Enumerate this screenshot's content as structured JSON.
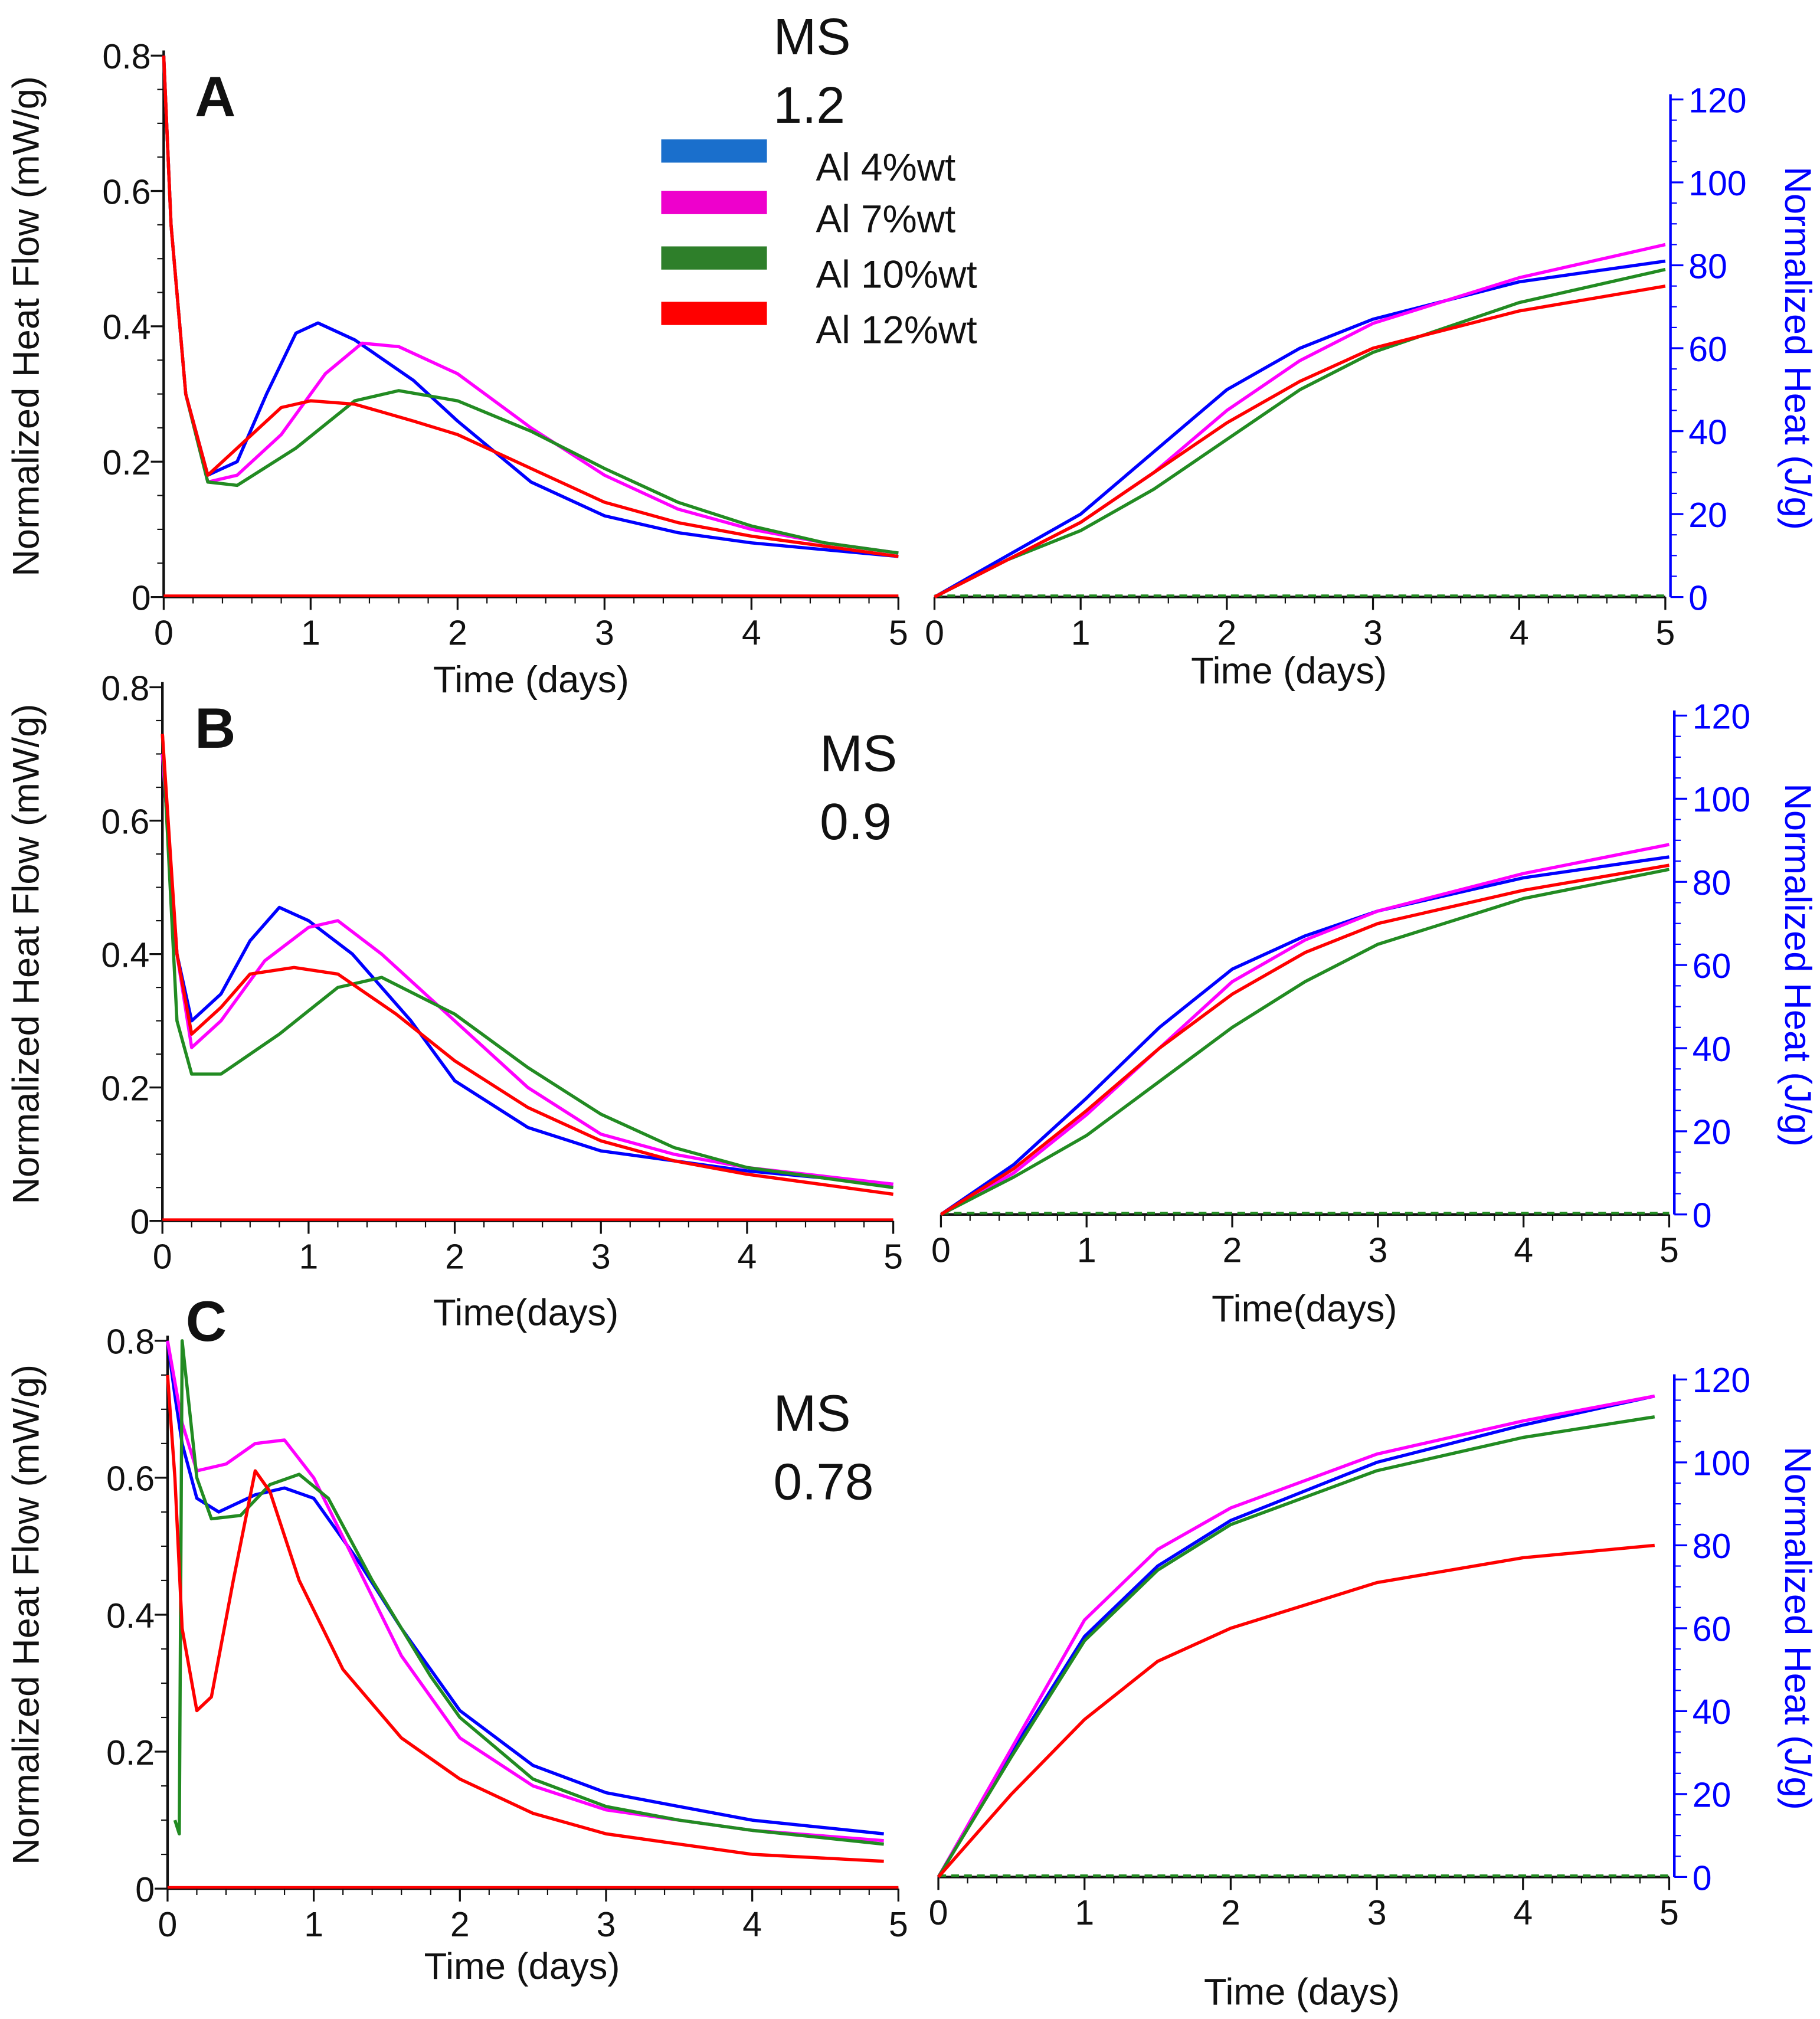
{
  "legend": {
    "entries": [
      {
        "label": "Al 4%wt",
        "color": "#1a6fcc"
      },
      {
        "label": "Al 7%wt",
        "color": "#ee00cc"
      },
      {
        "label": "Al 10%wt",
        "color": "#2e7f2a"
      },
      {
        "label": "Al 12%wt",
        "color": "#ff0000"
      }
    ]
  },
  "series_colors": [
    "#0000ff",
    "#ff00ff",
    "#228b22",
    "#ff0000"
  ],
  "chart_data": [
    {
      "id": "A-flow",
      "panel": "A",
      "ms_label": "MS",
      "ms_value": "1.2",
      "type": "line",
      "xlabel": "Time (days)",
      "ylabel": "Normalized Heat Flow (mW/g)",
      "xlim": [
        0,
        5
      ],
      "ylim": [
        0,
        0.8
      ],
      "xticks": [
        "0",
        "1",
        "2",
        "3",
        "4",
        "5"
      ],
      "yticks": [
        "0",
        "0.2",
        "0.4",
        "0.6",
        "0.8"
      ],
      "series": [
        {
          "name": "Al 4%wt",
          "x": [
            0,
            0.05,
            0.15,
            0.3,
            0.5,
            0.7,
            0.9,
            1.05,
            1.3,
            1.7,
            2,
            2.5,
            3,
            3.5,
            4,
            4.5,
            5
          ],
          "y": [
            0.8,
            0.55,
            0.3,
            0.18,
            0.2,
            0.3,
            0.39,
            0.405,
            0.38,
            0.32,
            0.26,
            0.17,
            0.12,
            0.095,
            0.08,
            0.07,
            0.06
          ]
        },
        {
          "name": "Al 7%wt",
          "x": [
            0,
            0.05,
            0.15,
            0.3,
            0.5,
            0.8,
            1.1,
            1.35,
            1.6,
            2,
            2.5,
            3,
            3.5,
            4,
            4.5,
            5
          ],
          "y": [
            0.8,
            0.55,
            0.3,
            0.17,
            0.18,
            0.24,
            0.33,
            0.375,
            0.37,
            0.33,
            0.25,
            0.18,
            0.13,
            0.1,
            0.08,
            0.065
          ]
        },
        {
          "name": "Al 10%wt",
          "x": [
            0,
            0.05,
            0.15,
            0.3,
            0.5,
            0.9,
            1.3,
            1.6,
            2,
            2.5,
            3,
            3.5,
            4,
            4.5,
            5
          ],
          "y": [
            0.8,
            0.55,
            0.3,
            0.17,
            0.165,
            0.22,
            0.29,
            0.305,
            0.29,
            0.245,
            0.19,
            0.14,
            0.105,
            0.08,
            0.065
          ]
        },
        {
          "name": "Al 12%wt",
          "x": [
            0,
            0.05,
            0.15,
            0.3,
            0.5,
            0.8,
            1,
            1.3,
            1.7,
            2,
            2.5,
            3,
            3.5,
            4,
            4.5,
            5
          ],
          "y": [
            0.8,
            0.55,
            0.3,
            0.18,
            0.22,
            0.28,
            0.29,
            0.285,
            0.26,
            0.24,
            0.19,
            0.14,
            0.11,
            0.09,
            0.075,
            0.06
          ]
        }
      ]
    },
    {
      "id": "A-heat",
      "panel": "A",
      "type": "line",
      "xlabel": "Time (days)",
      "ylabel": "Normalized Heat (J/g)",
      "xlim": [
        0,
        5
      ],
      "ylim": [
        0,
        120
      ],
      "xticks": [
        "0",
        "1",
        "2",
        "3",
        "4",
        "5"
      ],
      "yticks": [
        "0",
        "20",
        "40",
        "60",
        "80",
        "100",
        "120"
      ],
      "series": [
        {
          "name": "Al 4%wt",
          "x": [
            0,
            0.5,
            1,
            1.5,
            2,
            2.5,
            3,
            4,
            5
          ],
          "y": [
            0,
            10,
            20,
            35,
            50,
            60,
            67,
            76,
            81
          ]
        },
        {
          "name": "Al 7%wt",
          "x": [
            0,
            0.5,
            1,
            1.5,
            2,
            2.5,
            3,
            4,
            5
          ],
          "y": [
            0,
            9,
            18,
            30,
            45,
            57,
            66,
            77,
            85
          ]
        },
        {
          "name": "Al 10%wt",
          "x": [
            0,
            0.5,
            1,
            1.5,
            2,
            2.5,
            3,
            4,
            5
          ],
          "y": [
            0,
            9,
            16,
            26,
            38,
            50,
            59,
            71,
            79
          ]
        },
        {
          "name": "Al 12%wt",
          "x": [
            0,
            0.5,
            1,
            1.5,
            2,
            2.5,
            3,
            4,
            5
          ],
          "y": [
            0,
            9,
            18,
            30,
            42,
            52,
            60,
            69,
            75
          ]
        }
      ]
    },
    {
      "id": "B-flow",
      "panel": "B",
      "ms_label": "MS",
      "ms_value": "0.9",
      "type": "line",
      "xlabel": "Time(days)",
      "ylabel": "Normalized Heat Flow (mW/g)",
      "xlim": [
        0,
        5
      ],
      "ylim": [
        0,
        0.8
      ],
      "xticks": [
        "0",
        "1",
        "2",
        "3",
        "4",
        "5"
      ],
      "yticks": [
        "0",
        "0.2",
        "0.4",
        "0.6",
        "0.8"
      ],
      "series": [
        {
          "name": "Al 4%wt",
          "x": [
            0,
            0.1,
            0.2,
            0.4,
            0.6,
            0.8,
            1,
            1.3,
            1.7,
            2,
            2.5,
            3,
            3.5,
            4,
            5
          ],
          "y": [
            0.7,
            0.4,
            0.3,
            0.34,
            0.42,
            0.47,
            0.45,
            0.4,
            0.3,
            0.21,
            0.14,
            0.105,
            0.09,
            0.075,
            0.055
          ]
        },
        {
          "name": "Al 7%wt",
          "x": [
            0,
            0.1,
            0.2,
            0.4,
            0.7,
            1,
            1.2,
            1.5,
            2,
            2.5,
            3,
            3.5,
            4,
            5
          ],
          "y": [
            0.7,
            0.4,
            0.26,
            0.3,
            0.39,
            0.44,
            0.45,
            0.4,
            0.3,
            0.2,
            0.13,
            0.1,
            0.08,
            0.055
          ]
        },
        {
          "name": "Al 10%wt",
          "x": [
            0,
            0.1,
            0.2,
            0.4,
            0.8,
            1.2,
            1.5,
            2,
            2.5,
            3,
            3.5,
            4,
            5
          ],
          "y": [
            0.73,
            0.3,
            0.22,
            0.22,
            0.28,
            0.35,
            0.365,
            0.31,
            0.23,
            0.16,
            0.11,
            0.08,
            0.05
          ]
        },
        {
          "name": "Al 12%wt",
          "x": [
            0,
            0.1,
            0.2,
            0.4,
            0.6,
            0.9,
            1.2,
            1.6,
            2,
            2.5,
            3,
            3.5,
            4,
            5
          ],
          "y": [
            0.73,
            0.4,
            0.28,
            0.32,
            0.37,
            0.38,
            0.37,
            0.31,
            0.24,
            0.17,
            0.12,
            0.09,
            0.07,
            0.04
          ]
        }
      ]
    },
    {
      "id": "B-heat",
      "panel": "B",
      "type": "line",
      "xlabel": "Time(days)",
      "ylabel": "Normalized Heat (J/g)",
      "xlim": [
        0,
        5
      ],
      "ylim": [
        0,
        120
      ],
      "xticks": [
        "0",
        "1",
        "2",
        "3",
        "4",
        "5"
      ],
      "yticks": [
        "0",
        "20",
        "40",
        "60",
        "80",
        "100",
        "120"
      ],
      "series": [
        {
          "name": "Al 4%wt",
          "x": [
            0,
            0.5,
            1,
            1.5,
            2,
            2.5,
            3,
            4,
            5
          ],
          "y": [
            0,
            12,
            28,
            45,
            59,
            67,
            73,
            81,
            86
          ]
        },
        {
          "name": "Al 7%wt",
          "x": [
            0,
            0.5,
            1,
            1.5,
            2,
            2.5,
            3,
            4,
            5
          ],
          "y": [
            0,
            10,
            24,
            40,
            56,
            66,
            73,
            82,
            89
          ]
        },
        {
          "name": "Al 10%wt",
          "x": [
            0,
            0.5,
            1,
            1.5,
            2,
            2.5,
            3,
            4,
            5
          ],
          "y": [
            0,
            9,
            19,
            32,
            45,
            56,
            65,
            76,
            83
          ]
        },
        {
          "name": "Al 12%wt",
          "x": [
            0,
            0.5,
            1,
            1.5,
            2,
            2.5,
            3,
            4,
            5
          ],
          "y": [
            0,
            11,
            25,
            40,
            53,
            63,
            70,
            78,
            84
          ]
        }
      ]
    },
    {
      "id": "C-flow",
      "panel": "C",
      "ms_label": "MS",
      "ms_value": "0.78",
      "type": "line",
      "xlabel": "Time (days)",
      "ylabel": "Normalized Heat Flow (mW/g)",
      "xlim": [
        0,
        5
      ],
      "ylim": [
        0,
        0.8
      ],
      "xticks": [
        "0",
        "1",
        "2",
        "3",
        "4",
        "5"
      ],
      "yticks": [
        "0",
        "0.2",
        "0.4",
        "0.6",
        "0.8"
      ],
      "series": [
        {
          "name": "Al 4%wt",
          "x": [
            0,
            0.05,
            0.1,
            0.2,
            0.35,
            0.6,
            0.8,
            1,
            1.3,
            1.6,
            2,
            2.5,
            3,
            3.5,
            4,
            4.9
          ],
          "y": [
            0.8,
            0.72,
            0.65,
            0.57,
            0.55,
            0.575,
            0.585,
            0.57,
            0.48,
            0.38,
            0.26,
            0.18,
            0.14,
            0.12,
            0.1,
            0.08
          ]
        },
        {
          "name": "Al 7%wt",
          "x": [
            0,
            0.1,
            0.2,
            0.4,
            0.6,
            0.8,
            1,
            1.3,
            1.6,
            2,
            2.5,
            3,
            3.5,
            4,
            4.9
          ],
          "y": [
            0.8,
            0.68,
            0.61,
            0.62,
            0.65,
            0.655,
            0.6,
            0.47,
            0.34,
            0.22,
            0.15,
            0.115,
            0.1,
            0.085,
            0.07
          ]
        },
        {
          "name": "Al 10%wt",
          "x": [
            0.05,
            0.08,
            0.1,
            0.2,
            0.3,
            0.5,
            0.7,
            0.9,
            1.1,
            1.4,
            1.8,
            2,
            2.5,
            3,
            3.5,
            4,
            4.9
          ],
          "y": [
            0.1,
            0.08,
            0.8,
            0.6,
            0.54,
            0.545,
            0.59,
            0.605,
            0.57,
            0.45,
            0.31,
            0.25,
            0.16,
            0.12,
            0.1,
            0.085,
            0.065
          ]
        },
        {
          "name": "Al 12%wt",
          "x": [
            0,
            0.05,
            0.1,
            0.2,
            0.3,
            0.45,
            0.6,
            0.7,
            0.9,
            1.2,
            1.6,
            2,
            2.5,
            3,
            3.5,
            4,
            4.9
          ],
          "y": [
            0.75,
            0.6,
            0.38,
            0.26,
            0.28,
            0.45,
            0.61,
            0.58,
            0.45,
            0.32,
            0.22,
            0.16,
            0.11,
            0.08,
            0.065,
            0.05,
            0.04
          ]
        }
      ]
    },
    {
      "id": "C-heat",
      "panel": "C",
      "type": "line",
      "xlabel": "Time (days)",
      "ylabel": "Normalized Heat (J/g)",
      "xlim": [
        0,
        5
      ],
      "ylim": [
        0,
        120
      ],
      "xticks": [
        "0",
        "1",
        "2",
        "3",
        "4",
        "5"
      ],
      "yticks": [
        "0",
        "20",
        "40",
        "60",
        "80",
        "100",
        "120"
      ],
      "series": [
        {
          "name": "Al 4%wt",
          "x": [
            0,
            0.5,
            1,
            1.5,
            2,
            3,
            4,
            4.9
          ],
          "y": [
            0,
            30,
            58,
            75,
            86,
            100,
            109,
            116
          ]
        },
        {
          "name": "Al 7%wt",
          "x": [
            0,
            0.5,
            1,
            1.5,
            2,
            3,
            4,
            4.9
          ],
          "y": [
            0,
            31,
            62,
            79,
            89,
            102,
            110,
            116
          ]
        },
        {
          "name": "Al 10%wt",
          "x": [
            0,
            0.5,
            1,
            1.5,
            2,
            3,
            4,
            4.9
          ],
          "y": [
            0,
            29,
            57,
            74,
            85,
            98,
            106,
            111
          ]
        },
        {
          "name": "Al 12%wt",
          "x": [
            0,
            0.5,
            1,
            1.5,
            2,
            3,
            4,
            4.9
          ],
          "y": [
            0,
            20,
            38,
            52,
            60,
            71,
            77,
            80
          ]
        }
      ]
    }
  ]
}
